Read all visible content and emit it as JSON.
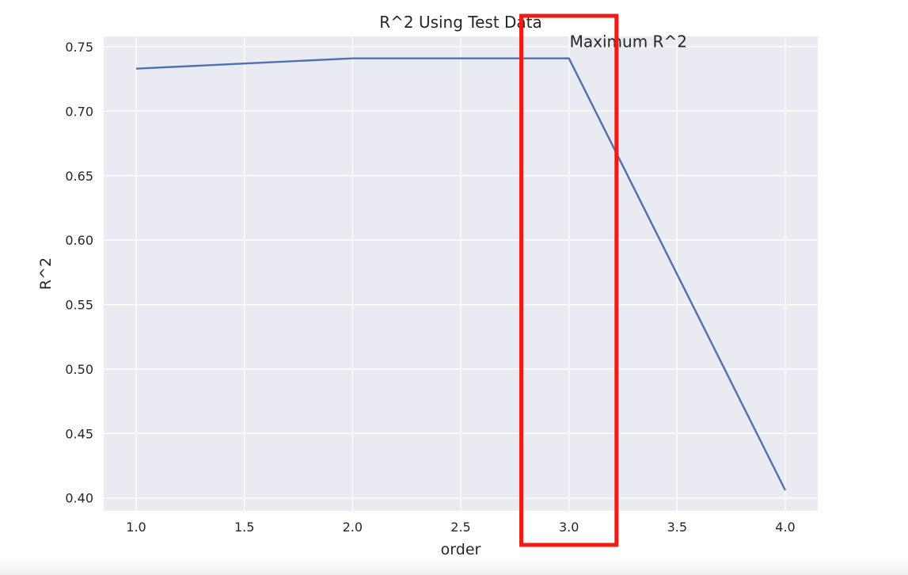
{
  "chart_data": {
    "type": "line",
    "title": "R^2 Using Test Data",
    "xlabel": "order",
    "ylabel": "R^2",
    "x": [
      1.0,
      2.0,
      3.0,
      4.0
    ],
    "series": [
      {
        "values": [
          0.733,
          0.741,
          0.741,
          0.406
        ]
      }
    ],
    "xlim": [
      0.85,
      4.15
    ],
    "ylim": [
      0.39,
      0.758
    ],
    "xticks": [
      1.0,
      1.5,
      2.0,
      2.5,
      3.0,
      3.5,
      4.0
    ],
    "xtick_labels": [
      "1.0",
      "1.5",
      "2.0",
      "2.5",
      "3.0",
      "3.5",
      "4.0"
    ],
    "yticks": [
      0.4,
      0.45,
      0.5,
      0.55,
      0.6,
      0.65,
      0.7,
      0.75
    ],
    "ytick_labels": [
      "0.40",
      "0.45",
      "0.50",
      "0.55",
      "0.60",
      "0.65",
      "0.70",
      "0.75"
    ],
    "grid": true,
    "annotation": {
      "text": "Maximum R^2",
      "x": 3.0,
      "y": 0.741
    },
    "highlight": {
      "x_from": 2.78,
      "x_to": 3.22,
      "color": "#ee1c12"
    },
    "colors": {
      "line": "#4c72b0",
      "plot_background": "#eaeaf2",
      "grid": "#ffffff",
      "highlight_box": "#ee1c12"
    }
  }
}
